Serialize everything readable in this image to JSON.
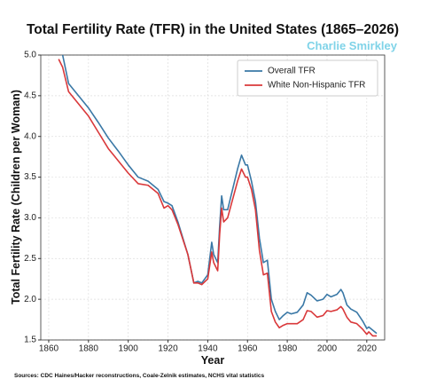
{
  "chart_data": {
    "type": "line",
    "title": "Total Fertility Rate (TFR) in the United States (1865–2026)",
    "subtitle": "Charlie Smirkley",
    "xlabel": "Year",
    "ylabel": "Total Fertility Rate (Children per Woman)",
    "source": "Sources: CDC Haines/Hacker reconstructions, Coale-Zelnik estimates, NCHS vital statistics",
    "x": [
      1865,
      1867,
      1870,
      1875,
      1880,
      1885,
      1890,
      1895,
      1900,
      1905,
      1910,
      1915,
      1918,
      1920,
      1922,
      1925,
      1930,
      1933,
      1935,
      1937,
      1940,
      1942,
      1943,
      1945,
      1946,
      1947,
      1948,
      1950,
      1955,
      1957,
      1959,
      1960,
      1962,
      1964,
      1966,
      1968,
      1970,
      1972,
      1974,
      1976,
      1978,
      1980,
      1982,
      1985,
      1988,
      1990,
      1992,
      1995,
      1998,
      2000,
      2002,
      2005,
      2007,
      2008,
      2010,
      2012,
      2015,
      2018,
      2020,
      2021,
      2023,
      2025
    ],
    "series": [
      {
        "name": "Overall TFR",
        "color": "#3a78a6",
        "values": [
          null,
          5.0,
          4.65,
          4.5,
          4.35,
          4.17,
          3.98,
          3.82,
          3.65,
          3.5,
          3.45,
          3.35,
          3.2,
          3.18,
          3.15,
          2.95,
          2.55,
          2.2,
          2.22,
          2.2,
          2.3,
          2.7,
          2.55,
          2.45,
          2.9,
          3.27,
          3.1,
          3.1,
          3.6,
          3.77,
          3.65,
          3.65,
          3.45,
          3.2,
          2.75,
          2.45,
          2.48,
          2.0,
          1.85,
          1.75,
          1.8,
          1.84,
          1.82,
          1.84,
          1.93,
          2.08,
          2.05,
          1.98,
          2.0,
          2.06,
          2.03,
          2.06,
          2.12,
          2.08,
          1.93,
          1.88,
          1.84,
          1.73,
          1.64,
          1.66,
          1.62,
          1.58
        ]
      },
      {
        "name": "White Non-Hispanic TFR",
        "color": "#d9383a",
        "values": [
          4.95,
          4.85,
          4.55,
          4.4,
          4.25,
          4.05,
          3.85,
          3.7,
          3.55,
          3.42,
          3.4,
          3.3,
          3.12,
          3.15,
          3.1,
          2.92,
          2.55,
          2.2,
          2.2,
          2.18,
          2.25,
          2.58,
          2.45,
          2.35,
          2.8,
          3.12,
          2.95,
          3.0,
          3.45,
          3.6,
          3.5,
          3.5,
          3.35,
          3.1,
          2.6,
          2.3,
          2.32,
          1.85,
          1.72,
          1.65,
          1.68,
          1.7,
          1.7,
          1.7,
          1.75,
          1.86,
          1.85,
          1.78,
          1.8,
          1.86,
          1.85,
          1.87,
          1.91,
          1.88,
          1.78,
          1.72,
          1.7,
          1.63,
          1.57,
          1.6,
          1.55,
          1.55
        ]
      }
    ],
    "xlim": [
      1856,
      2029
    ],
    "ylim": [
      1.5,
      5.0
    ],
    "xticks": [
      1860,
      1880,
      1900,
      1920,
      1940,
      1960,
      1980,
      2000,
      2020
    ],
    "yticks": [
      1.5,
      {
        "value": 2.0,
        "label": "2.0"
      },
      2.5,
      {
        "value": 3.0,
        "label": "3.0"
      },
      3.5,
      {
        "value": 4.0,
        "label": "4.0"
      },
      4.5,
      {
        "value": 5.0,
        "label": "5.0"
      }
    ],
    "grid": true,
    "legend": "upper right"
  }
}
